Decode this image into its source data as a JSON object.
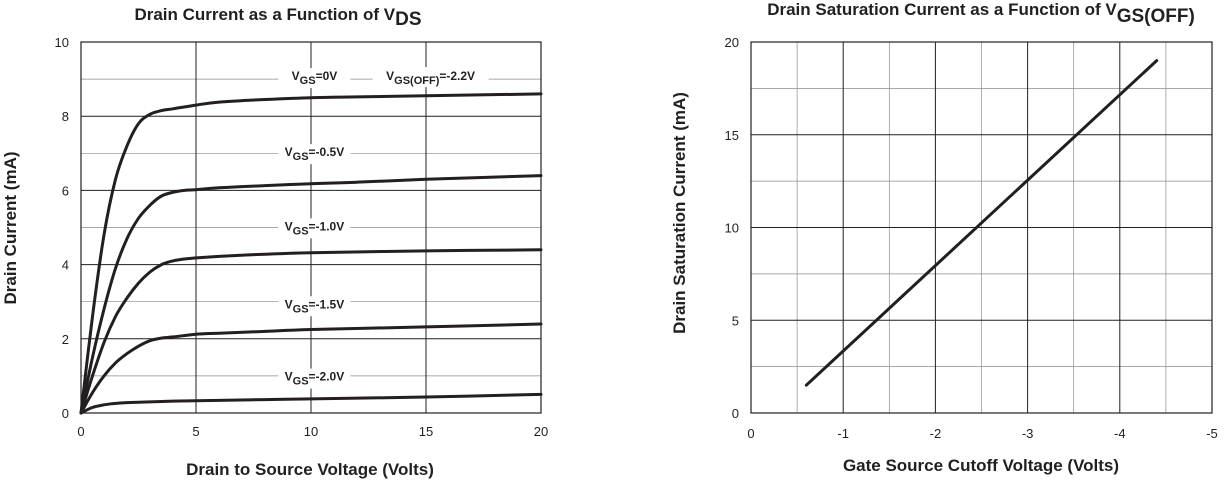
{
  "chart_data": [
    {
      "type": "line",
      "title": "Drain Current as a Function of V",
      "title_sub": "DS",
      "xlabel": "Drain to Source Voltage (Volts)",
      "ylabel": "Drain Current (mA)",
      "xlim": [
        0,
        20
      ],
      "ylim": [
        0,
        10
      ],
      "xticks": [
        0,
        5,
        10,
        15,
        20
      ],
      "yticks": [
        0,
        2,
        4,
        6,
        8,
        10
      ],
      "grid": true,
      "series": [
        {
          "name": "VGS=0V",
          "label_main": "V",
          "label_sub": "GS",
          "label_rest": "=0V",
          "x": [
            0,
            0.5,
            1,
            1.5,
            2,
            2.5,
            3,
            3.5,
            4,
            5,
            6,
            8,
            10,
            12,
            15,
            20
          ],
          "y": [
            0,
            2.6,
            4.8,
            6.3,
            7.2,
            7.8,
            8.05,
            8.15,
            8.2,
            8.3,
            8.38,
            8.45,
            8.5,
            8.52,
            8.55,
            8.6
          ]
        },
        {
          "name": "VGS=-0.5V",
          "label_main": "V",
          "label_sub": "GS",
          "label_rest": "=-0.5V",
          "x": [
            0,
            0.5,
            1,
            1.5,
            2,
            2.5,
            3,
            3.5,
            4,
            4.5,
            5,
            6,
            8,
            10,
            12,
            15,
            20
          ],
          "y": [
            0,
            1.5,
            2.8,
            3.9,
            4.7,
            5.25,
            5.6,
            5.85,
            5.95,
            6.0,
            6.02,
            6.07,
            6.13,
            6.18,
            6.22,
            6.3,
            6.4
          ]
        },
        {
          "name": "VGS=-1.0V",
          "label_main": "V",
          "label_sub": "GS",
          "label_rest": "=-1.0V",
          "x": [
            0,
            0.5,
            1,
            1.5,
            2,
            2.5,
            3,
            3.5,
            4,
            4.5,
            5,
            6,
            8,
            10,
            15,
            20
          ],
          "y": [
            0,
            1.0,
            1.9,
            2.6,
            3.1,
            3.5,
            3.8,
            4.0,
            4.1,
            4.15,
            4.18,
            4.22,
            4.28,
            4.32,
            4.37,
            4.4
          ]
        },
        {
          "name": "VGS=-1.5V",
          "label_main": "V",
          "label_sub": "GS",
          "label_rest": "=-1.5V",
          "x": [
            0,
            0.5,
            1,
            1.5,
            2,
            2.5,
            3,
            3.5,
            4,
            5,
            6,
            8,
            10,
            15,
            20
          ],
          "y": [
            0,
            0.55,
            1.0,
            1.35,
            1.6,
            1.8,
            1.95,
            2.02,
            2.05,
            2.12,
            2.15,
            2.2,
            2.25,
            2.32,
            2.4
          ]
        },
        {
          "name": "VGS=-2.0V",
          "label_main": "V",
          "label_sub": "GS",
          "label_rest": "=-2.0V",
          "x": [
            0,
            0.5,
            1,
            1.5,
            2,
            3,
            4,
            5,
            6,
            8,
            10,
            15,
            20
          ],
          "y": [
            0,
            0.15,
            0.22,
            0.26,
            0.28,
            0.3,
            0.32,
            0.33,
            0.34,
            0.36,
            0.38,
            0.43,
            0.5
          ]
        }
      ],
      "annotation": {
        "main": "V",
        "sub": "GS(OFF)",
        "rest": "=-2.2V"
      }
    },
    {
      "type": "line",
      "title": "Drain Saturation Current as a Function of V",
      "title_sub": "GS(OFF)",
      "xlabel": "Gate Source Cutoff Voltage (Volts)",
      "ylabel": "Drain Saturation Current (mA)",
      "xlim": [
        0,
        -5
      ],
      "ylim": [
        0,
        20
      ],
      "xticks": [
        0,
        -1,
        -2,
        -3,
        -4,
        -5
      ],
      "yticks": [
        0,
        5,
        10,
        15,
        20
      ],
      "grid": true,
      "series": [
        {
          "x": [
            -0.6,
            -4.4
          ],
          "y": [
            1.5,
            19
          ]
        }
      ]
    }
  ]
}
